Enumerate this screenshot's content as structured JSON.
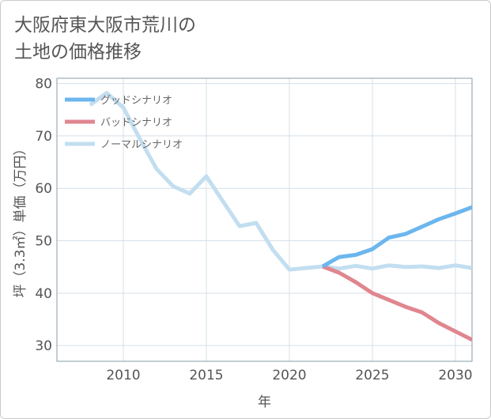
{
  "title": "大阪府東大阪市荒川の\n土地の価格推移",
  "chart_data": {
    "type": "line",
    "xlabel": "年",
    "ylabel": "坪（3.3㎡）単価（万円）",
    "xlim": [
      2006,
      2031
    ],
    "ylim": [
      27,
      81
    ],
    "xticks": [
      2010,
      2015,
      2020,
      2025,
      2030
    ],
    "yticks": [
      30,
      40,
      50,
      60,
      70,
      80
    ],
    "grid": true,
    "legend_position": "top-left",
    "series": [
      {
        "name": "グッドシナリオ",
        "color": "#6cb6ee",
        "x": [
          2022,
          2023,
          2024,
          2025,
          2026,
          2027,
          2028,
          2029,
          2030,
          2031
        ],
        "y": [
          45.1,
          46.9,
          47.3,
          48.4,
          50.6,
          51.3,
          52.7,
          54.1,
          55.2,
          56.4
        ]
      },
      {
        "name": "バッドシナリオ",
        "color": "#e0868f",
        "x": [
          2022,
          2023,
          2024,
          2025,
          2026,
          2027,
          2028,
          2029,
          2030,
          2031
        ],
        "y": [
          45.1,
          43.9,
          42.1,
          40.0,
          38.7,
          37.4,
          36.3,
          34.3,
          32.7,
          31.1
        ]
      },
      {
        "name": "ノーマルシナリオ",
        "color": "#c2def0",
        "x": [
          2008,
          2009,
          2010,
          2011,
          2012,
          2013,
          2014,
          2015,
          2016,
          2017,
          2018,
          2019,
          2020,
          2021,
          2022,
          2023,
          2024,
          2025,
          2026,
          2027,
          2028,
          2029,
          2030,
          2031
        ],
        "y": [
          75.9,
          78.2,
          75.4,
          69.4,
          63.7,
          60.4,
          59.0,
          62.3,
          57.5,
          52.8,
          53.4,
          48.3,
          44.5,
          44.8,
          45.1,
          44.7,
          45.2,
          44.7,
          45.3,
          45.0,
          45.1,
          44.8,
          45.3,
          44.8
        ]
      }
    ]
  }
}
